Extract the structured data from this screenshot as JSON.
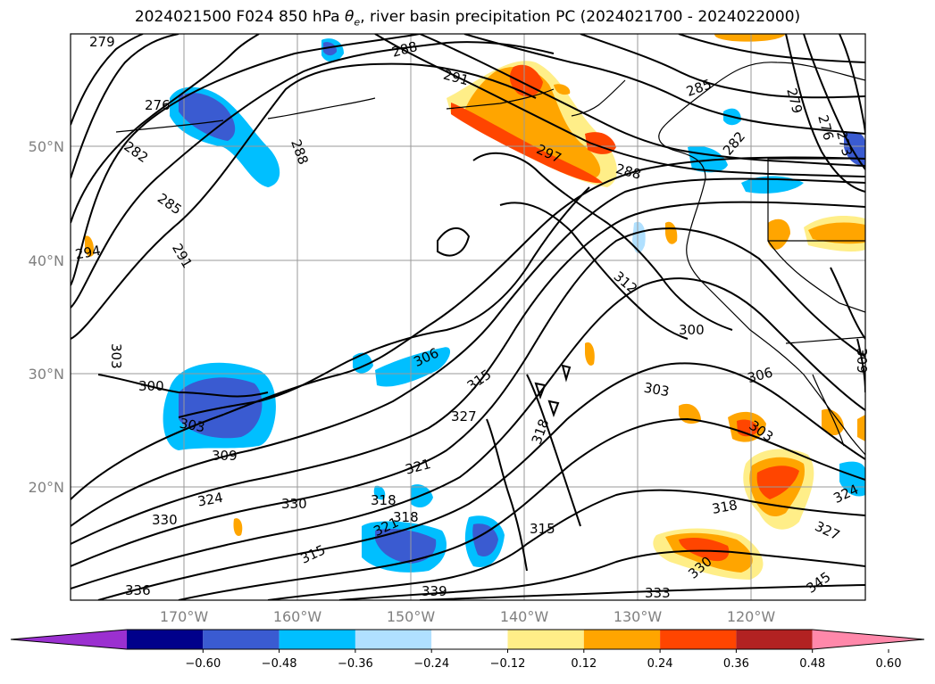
{
  "title": "2024021500 F024 850 hPa θe, river basin precipitation PC (2024021700 - 2024022000)",
  "title_parts": {
    "prefix": "2024021500 F024 850 hPa ",
    "theta": "θ",
    "theta_sub": "e",
    "suffix": ", river basin precipitation PC (2024021700 - 2024022000)"
  },
  "lat_labels": [
    "50°N",
    "40°N",
    "30°N",
    "20°N"
  ],
  "lon_labels": [
    "170°W",
    "160°W",
    "150°W",
    "140°W",
    "130°W",
    "120°W"
  ],
  "contour_labels": [
    "279",
    "276",
    "282",
    "285",
    "291",
    "294",
    "288",
    "288",
    "291",
    "297",
    "288",
    "285",
    "282",
    "279",
    "276",
    "273",
    "306",
    "303",
    "300",
    "303",
    "309",
    "315",
    "318",
    "321",
    "324",
    "330",
    "327",
    "318",
    "315",
    "312",
    "300",
    "306",
    "303",
    "303",
    "318",
    "330",
    "327",
    "324",
    "321",
    "330",
    "333",
    "336",
    "339",
    "345",
    "315",
    "318",
    "309"
  ],
  "colorbar": {
    "ticks": [
      "−0.60",
      "−0.48",
      "−0.36",
      "−0.24",
      "−0.12",
      "0.12",
      "0.24",
      "0.36",
      "0.48",
      "0.60"
    ],
    "colors": [
      "#9b30d0",
      "#00008b",
      "#3a5bd1",
      "#00bfff",
      "#b0e0ff",
      "#ffffff",
      "#ffee88",
      "#ffa500",
      "#ff4500",
      "#b22222",
      "#ff88aa"
    ]
  },
  "colors": {
    "dark_blue": "#3a5bd1",
    "mid_blue": "#00bfff",
    "light_blue": "#b0e0ff",
    "yellow": "#ffee88",
    "orange": "#ffa500",
    "red_orange": "#ff4500"
  }
}
